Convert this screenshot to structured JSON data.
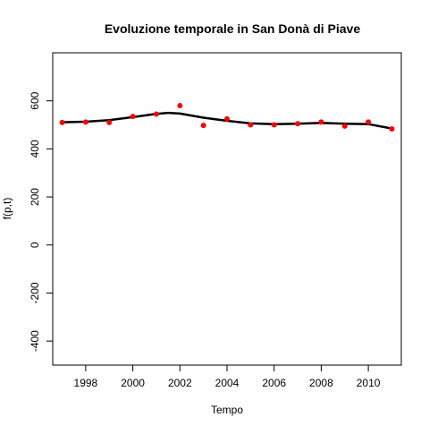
{
  "chart_data": {
    "type": "scatter",
    "title": "Evoluzione temporale in San Donà di Piave",
    "xlabel": "Tempo",
    "ylabel": "f(p,t)",
    "xlim": [
      1996.6,
      2011.4
    ],
    "ylim": [
      -500,
      800
    ],
    "x_ticks": [
      "1998",
      "2000",
      "2002",
      "2004",
      "2006",
      "2008",
      "2010"
    ],
    "y_ticks": [
      "-400",
      "-200",
      "0",
      "200",
      "400",
      "600"
    ],
    "grid": false,
    "series": [
      {
        "type": "scatter",
        "color": "#ff0000",
        "x": [
          1997,
          1998,
          1999,
          2000,
          2001,
          2002,
          2003,
          2004,
          2005,
          2006,
          2007,
          2008,
          2009,
          2010,
          2011
        ],
        "y": [
          510,
          512,
          510,
          535,
          545,
          580,
          498,
          525,
          500,
          500,
          505,
          512,
          495,
          512,
          483
        ]
      },
      {
        "type": "line",
        "color": "#000000",
        "x": [
          1997,
          1998,
          1999,
          2000,
          2001,
          2001.5,
          2002,
          2003,
          2004,
          2005,
          2006,
          2007,
          2008,
          2009,
          2010,
          2011
        ],
        "y": [
          511,
          513,
          520,
          532,
          546,
          550,
          547,
          530,
          517,
          506,
          503,
          505,
          508,
          505,
          503,
          485
        ]
      }
    ]
  }
}
